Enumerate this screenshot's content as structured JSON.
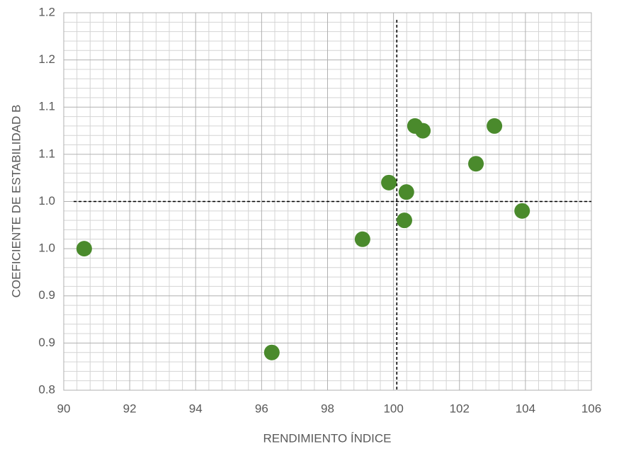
{
  "chart_data": {
    "type": "scatter",
    "x_label": "RENDIMIENTO ÍNDICE",
    "y_label": "COEFICIENTE DE ESTABILIDAD B",
    "x": [
      90.62,
      96.31,
      99.06,
      99.86,
      100.39,
      100.33,
      100.65,
      100.89,
      102.5,
      103.06,
      103.9
    ],
    "values": [
      0.95,
      0.84,
      0.96,
      1.02,
      1.01,
      0.98,
      1.08,
      1.075,
      1.04,
      1.08,
      0.99
    ],
    "color": "#4a8a2c",
    "xlim": [
      90,
      106
    ],
    "xticks": [
      90,
      92,
      94,
      96,
      98,
      100,
      102,
      104,
      106
    ],
    "ylim": [
      0.8,
      1.2
    ],
    "yticks": [
      0.8,
      {
        "value": 0.85,
        "label": "0.9"
      },
      0.9,
      {
        "value": 0.95,
        "label": "1.0"
      },
      {
        "value": 1,
        "label": "1.0"
      },
      {
        "value": 1.05,
        "label": "1.1"
      },
      1.1,
      {
        "value": 1.15,
        "label": "1.2"
      },
      1.2
    ],
    "grid": true,
    "reference_lines": {
      "x": 100.1,
      "y": 1.0
    }
  }
}
